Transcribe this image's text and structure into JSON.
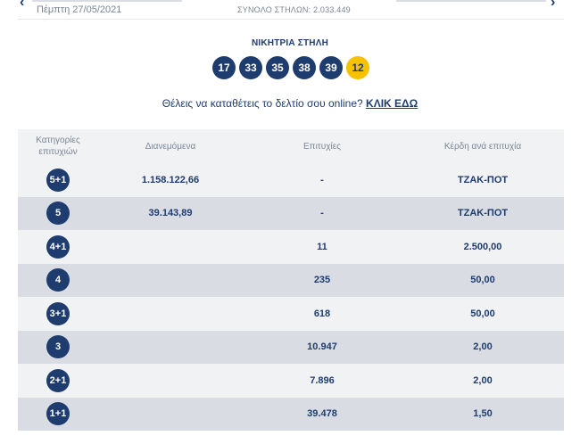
{
  "header": {
    "prev_icon": "chevron-left-icon",
    "next_icon": "chevron-right-icon",
    "date": "Πέμπτη 27/05/2021",
    "total": "ΣΥΝΟΛΟ ΣΤΗΛΩΝ: 2.033.449"
  },
  "winning": {
    "title": "ΝΙΚΗΤΡΙΑ ΣΤΗΛΗ",
    "numbers": [
      "17",
      "33",
      "35",
      "38",
      "39"
    ],
    "bonus": "12",
    "bonus_color": "#f6c200",
    "ball_color": "#1e3c6e"
  },
  "cta": {
    "text": "Θέλεις να καταθέτεις το δελτίο σου online?",
    "link": "ΚΛΙΚ ΕΔΩ"
  },
  "table": {
    "headers": [
      "Κατηγορίες επιτυχιών",
      "Διανεμόμενα",
      "Επιτυχίες",
      "Κέρδη ανά επιτυχία"
    ],
    "rows": [
      {
        "category": "5+1",
        "distributed": "1.158.122,66",
        "winners": "-",
        "prize": "ΤΖΑΚ-ΠΟΤ"
      },
      {
        "category": "5",
        "distributed": "39.143,89",
        "winners": "-",
        "prize": "ΤΖΑΚ-ΠΟΤ"
      },
      {
        "category": "4+1",
        "distributed": "",
        "winners": "11",
        "prize": "2.500,00"
      },
      {
        "category": "4",
        "distributed": "",
        "winners": "235",
        "prize": "50,00"
      },
      {
        "category": "3+1",
        "distributed": "",
        "winners": "618",
        "prize": "50,00"
      },
      {
        "category": "3",
        "distributed": "",
        "winners": "10.947",
        "prize": "2,00"
      },
      {
        "category": "2+1",
        "distributed": "",
        "winners": "7.896",
        "prize": "2,00"
      },
      {
        "category": "1+1",
        "distributed": "",
        "winners": "39.478",
        "prize": "1,50"
      }
    ]
  }
}
